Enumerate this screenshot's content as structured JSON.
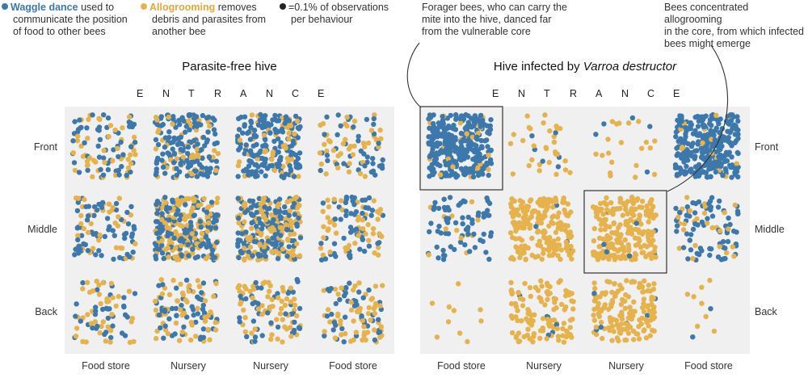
{
  "colors": {
    "waggle": "#3c78ab",
    "allogrooming": "#e6b24c",
    "marker": "#222222",
    "panel_bg": "#f0f0f0"
  },
  "legend": {
    "waggle_bold": "Waggle dance",
    "waggle_line1": " used to",
    "waggle_line2": "communicate the position",
    "waggle_line3": "of food to other bees",
    "allo_bold": "Allogrooming",
    "allo_line1": " removes",
    "allo_line2": "debris and parasites from",
    "allo_line3": "another bee",
    "marker_line1": "=0.1% of observations",
    "marker_line2": "per behaviour"
  },
  "annotations": {
    "forager_line1": "Forager bees, who can carry the",
    "forager_line2": "mite into the hive, danced far",
    "forager_line3": "from the vulnerable core",
    "core_line1": "Bees concentrated allogrooming",
    "core_line2": "in the core, from which infected",
    "core_line3": "bees might emerge"
  },
  "chart_data": [
    {
      "type": "scatter",
      "title": "Parasite-free hive",
      "entrance_label": "E N T R A N C E",
      "rows": [
        "Front",
        "Middle",
        "Back"
      ],
      "columns": [
        "Food store",
        "Nursery",
        "Nursery",
        "Food store"
      ],
      "series": [
        "Waggle dance",
        "Allogrooming"
      ],
      "approx_dot_counts": {
        "waggle": [
          [
            56,
            150,
            175,
            42
          ],
          [
            64,
            155,
            145,
            56
          ],
          [
            34,
            56,
            44,
            44
          ]
        ],
        "allogrooming": [
          [
            46,
            55,
            48,
            42
          ],
          [
            36,
            150,
            145,
            48
          ],
          [
            40,
            60,
            64,
            58
          ]
        ]
      }
    },
    {
      "type": "scatter",
      "title_prefix": "Hive infected by ",
      "title_italic": "Varroa destructor",
      "entrance_label": "E N T R A N C E",
      "rows": [
        "Front",
        "Middle",
        "Back"
      ],
      "columns": [
        "Food store",
        "Nursery",
        "Nursery",
        "Food store"
      ],
      "series": [
        "Waggle dance",
        "Allogrooming"
      ],
      "approx_dot_counts": {
        "waggle": [
          [
            320,
            6,
            5,
            290
          ],
          [
            68,
            4,
            7,
            72
          ],
          [
            0,
            6,
            6,
            2
          ]
        ],
        "allogrooming": [
          [
            22,
            30,
            20,
            18
          ],
          [
            12,
            205,
            215,
            28
          ],
          [
            10,
            115,
            150,
            8
          ]
        ]
      },
      "highlighted_cells": [
        [
          "Front",
          "Food store (left)"
        ],
        [
          "Middle",
          "Nursery (right)"
        ]
      ]
    }
  ]
}
